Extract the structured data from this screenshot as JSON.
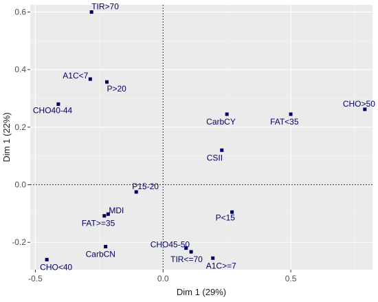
{
  "chart_data": {
    "type": "scatter",
    "xlabel": "Dim 1 (29%)",
    "ylabel": "Dim 1 (22%)",
    "xlim": [
      -0.52,
      0.82
    ],
    "ylim": [
      -0.295,
      0.625
    ],
    "x_ticks": [
      -0.5,
      0.0,
      0.5
    ],
    "x_tick_labels": [
      "-0.5",
      "0.0",
      "0.5"
    ],
    "y_ticks": [
      -0.2,
      0.0,
      0.2,
      0.4,
      0.6
    ],
    "y_tick_labels": [
      "-0.2",
      "0.0",
      "0.2",
      "0.4",
      "0.6"
    ],
    "reference_lines": {
      "x": 0,
      "y": 0,
      "style": "dotted"
    },
    "grid": true,
    "panel_background": "#ebebeb",
    "grid_color": "#ffffff",
    "point_color": "#000066",
    "points": [
      {
        "label": "TIR>70",
        "x": -0.28,
        "y": 0.6
      },
      {
        "label": "A1C<7",
        "x": -0.285,
        "y": 0.367
      },
      {
        "label": "P>20",
        "x": -0.22,
        "y": 0.357
      },
      {
        "label": "CHO40-44",
        "x": -0.41,
        "y": 0.28
      },
      {
        "label": "CarbCY",
        "x": 0.25,
        "y": 0.245
      },
      {
        "label": "FAT<35",
        "x": 0.5,
        "y": 0.245
      },
      {
        "label": "CHO>50",
        "x": 0.79,
        "y": 0.262
      },
      {
        "label": "CSII",
        "x": 0.23,
        "y": 0.12
      },
      {
        "label": "P15-20",
        "x": -0.105,
        "y": -0.025
      },
      {
        "label": "MDI",
        "x": -0.215,
        "y": -0.102
      },
      {
        "label": "FAT>=35",
        "x": -0.23,
        "y": -0.108
      },
      {
        "label": "P<15",
        "x": 0.27,
        "y": -0.095
      },
      {
        "label": "CarbCN",
        "x": -0.225,
        "y": -0.215
      },
      {
        "label": "CHO45-50",
        "x": 0.09,
        "y": -0.22
      },
      {
        "label": "TIR<=70",
        "x": 0.11,
        "y": -0.233
      },
      {
        "label": "A1C>=7",
        "x": 0.195,
        "y": -0.255
      },
      {
        "label": "CHO<40",
        "x": -0.455,
        "y": -0.26
      }
    ]
  }
}
